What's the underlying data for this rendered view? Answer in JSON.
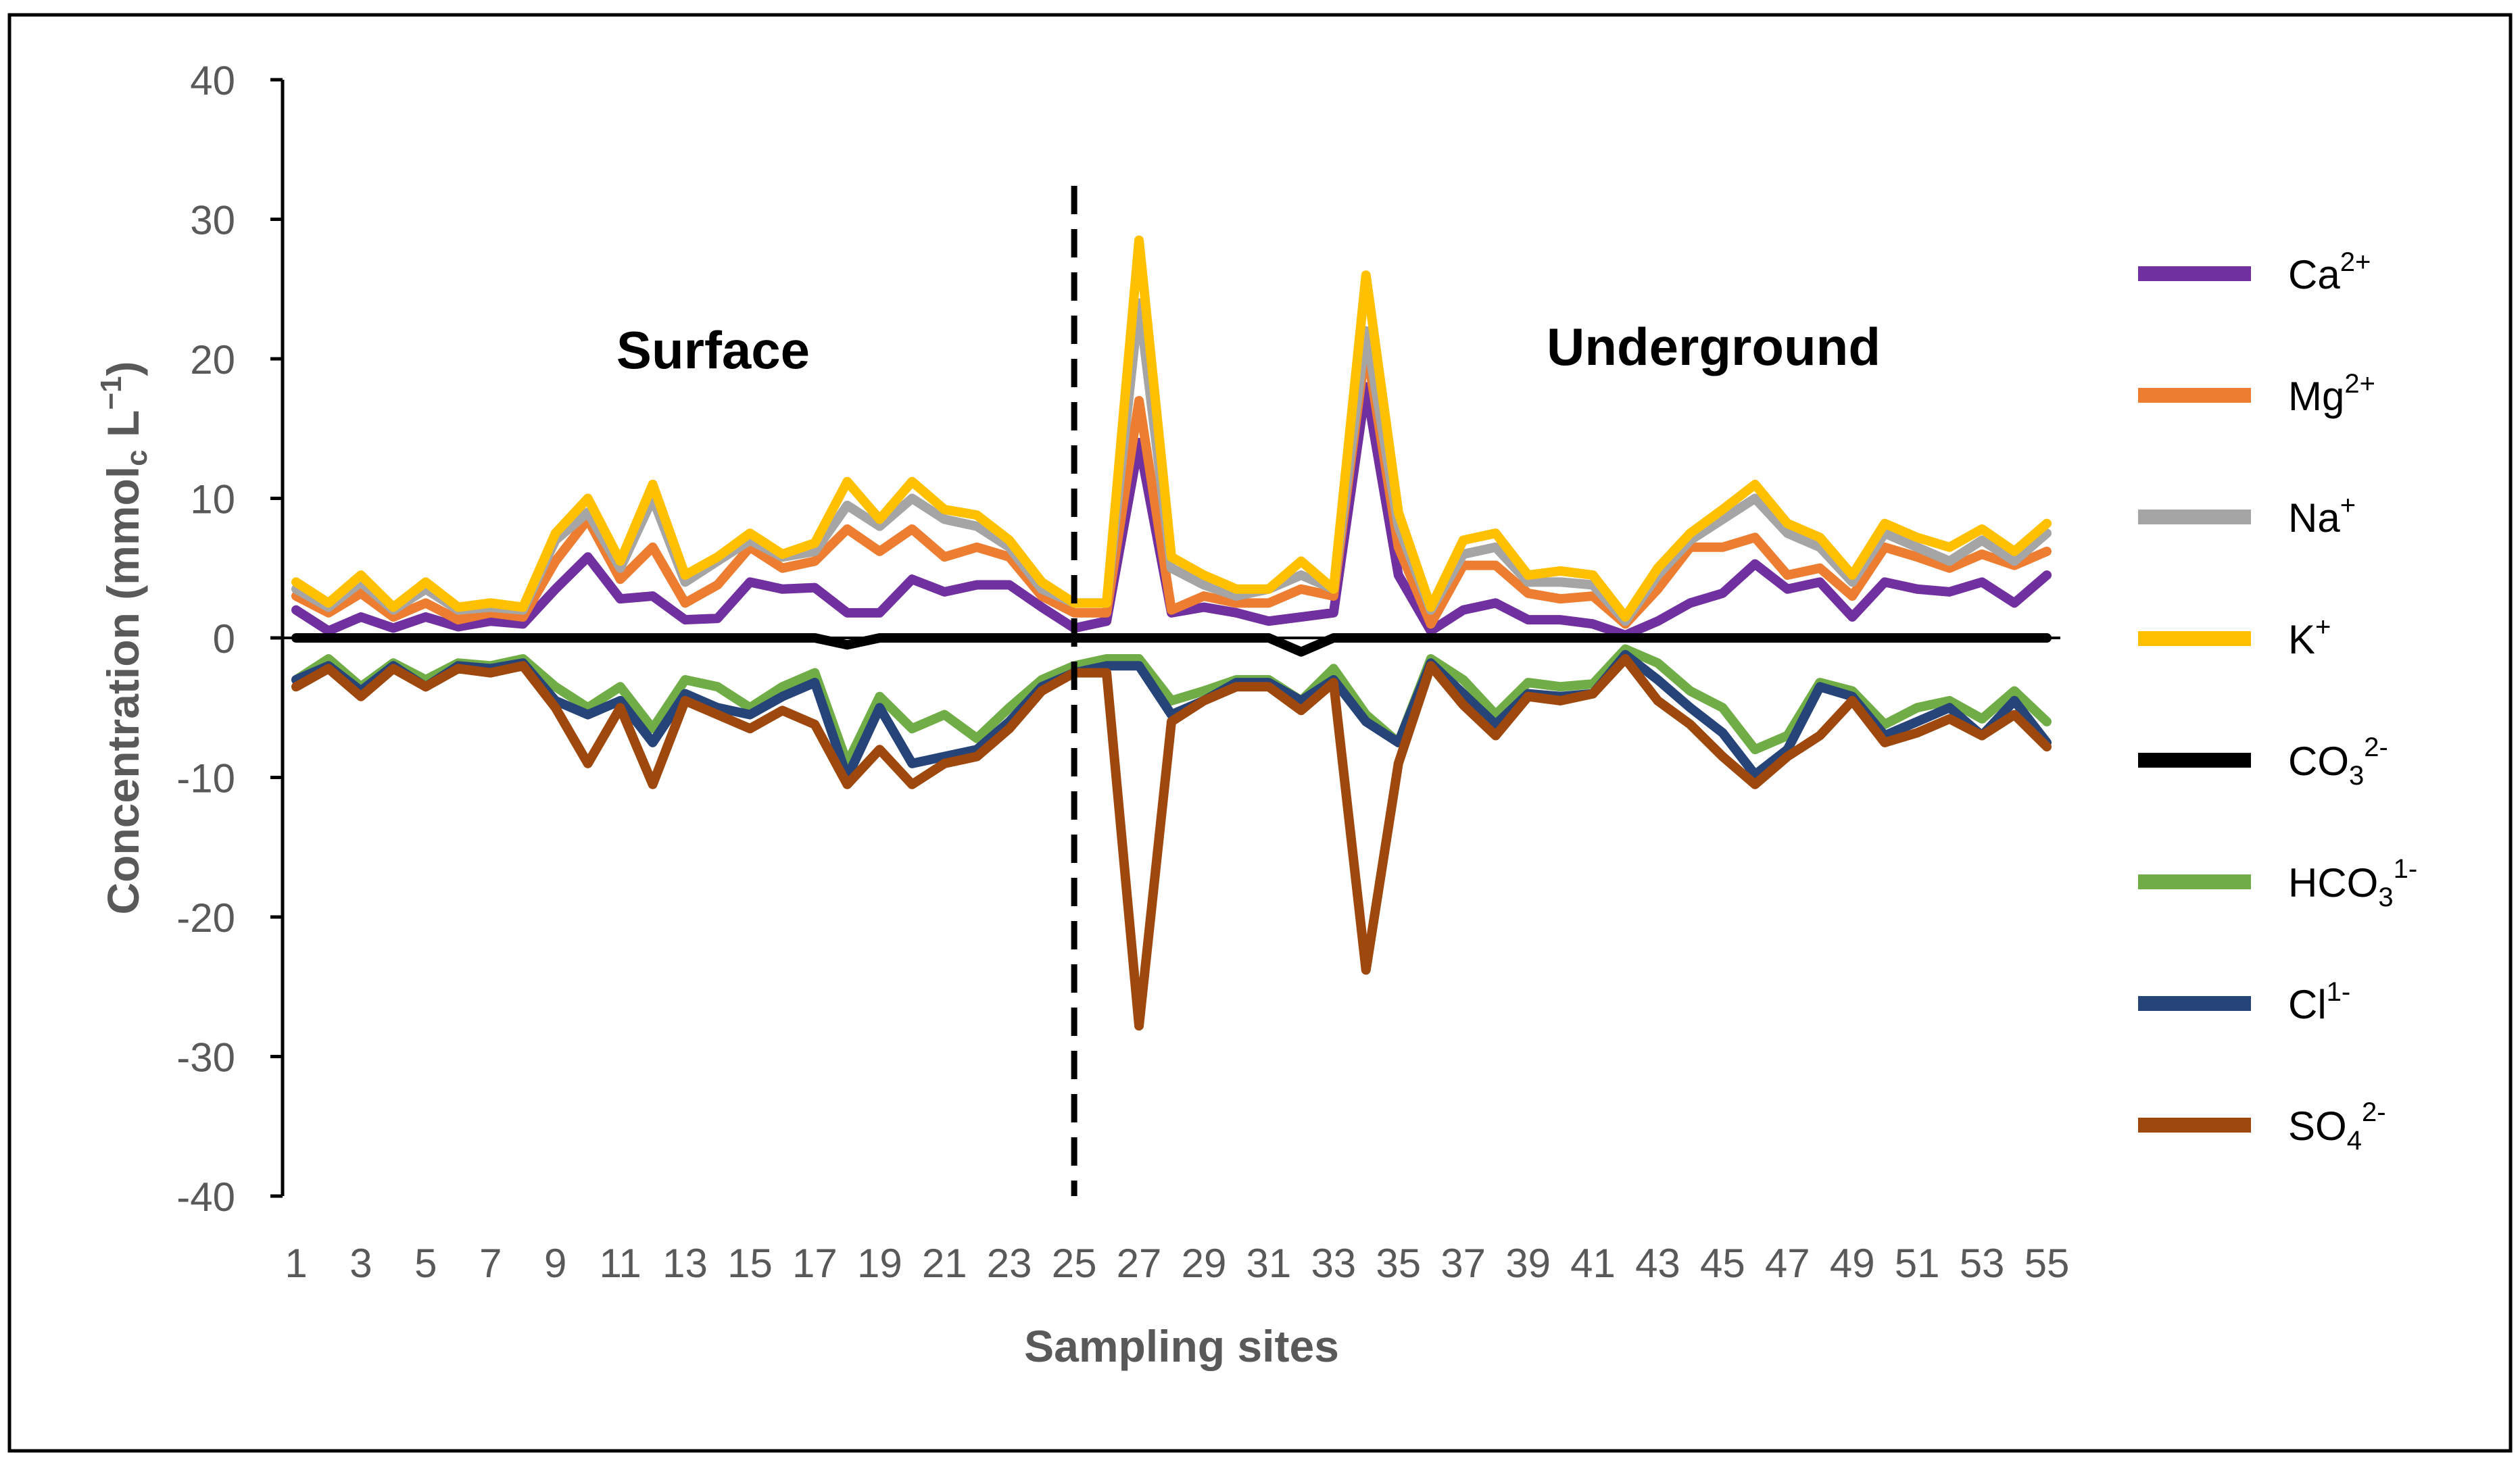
{
  "chart_data": {
    "type": "line",
    "title": "",
    "xlabel": "Sampling sites",
    "ylabel": {
      "pre": "Concentration (mmol",
      "sub": "c",
      "mid": " L",
      "sup": "−1",
      "post": ")"
    },
    "ylim": [
      -40,
      40
    ],
    "yticks": [
      40,
      30,
      20,
      10,
      0,
      -10,
      -20,
      -30,
      -40
    ],
    "xlim": [
      1,
      55
    ],
    "xticks": [
      1,
      3,
      5,
      7,
      9,
      11,
      13,
      15,
      17,
      19,
      21,
      23,
      25,
      27,
      29,
      31,
      33,
      35,
      37,
      39,
      41,
      43,
      45,
      47,
      49,
      51,
      53,
      55
    ],
    "divider_at": 25,
    "region_labels": {
      "left": "Surface",
      "right": "Underground"
    },
    "legend_position": "right",
    "x": [
      1,
      2,
      3,
      4,
      5,
      6,
      7,
      8,
      9,
      10,
      11,
      12,
      13,
      14,
      15,
      16,
      17,
      18,
      19,
      20,
      21,
      22,
      23,
      24,
      25,
      26,
      27,
      28,
      29,
      30,
      31,
      32,
      33,
      34,
      35,
      36,
      37,
      38,
      39,
      40,
      41,
      42,
      43,
      44,
      45,
      46,
      47,
      48,
      49,
      50,
      51,
      52,
      53,
      54,
      55
    ],
    "series": [
      {
        "name": "Ca2+",
        "label": {
          "base": "Ca",
          "sup": "2+",
          "sub": ""
        },
        "color": "#7030A0",
        "values": [
          2,
          0.5,
          1.5,
          0.7,
          1.5,
          0.8,
          1.2,
          1,
          3.5,
          5.8,
          2.8,
          3,
          1.3,
          1.4,
          4,
          3.5,
          3.6,
          1.8,
          1.8,
          4.2,
          3.3,
          3.8,
          3.8,
          2.2,
          0.7,
          1.2,
          14,
          1.8,
          2.2,
          1.8,
          1.2,
          1.5,
          1.8,
          18,
          4.5,
          0.5,
          2,
          2.5,
          1.3,
          1.3,
          1,
          0.2,
          1.2,
          2.5,
          3.2,
          5.3,
          3.5,
          4,
          1.5,
          4,
          3.5,
          3.3,
          4,
          2.5,
          4.5
        ]
      },
      {
        "name": "Mg2+",
        "label": {
          "base": "Mg",
          "sup": "2+",
          "sub": ""
        },
        "color": "#ED7D31",
        "values": [
          3,
          1.8,
          3.2,
          1.5,
          2.5,
          1.3,
          1.8,
          1.5,
          5.5,
          8.5,
          4.2,
          6.5,
          2.5,
          3.8,
          6.5,
          5,
          5.5,
          7.8,
          6.2,
          7.8,
          5.8,
          6.5,
          5.8,
          3,
          1.8,
          1.8,
          17,
          2,
          3,
          2.5,
          2.5,
          3.5,
          3,
          21,
          6.5,
          1,
          5.2,
          5.2,
          3.2,
          2.8,
          3,
          1,
          3.5,
          6.5,
          6.5,
          7.2,
          4.5,
          5,
          3,
          6.5,
          5.8,
          5,
          6,
          5.2,
          6.2
        ]
      },
      {
        "name": "Na+",
        "label": {
          "base": "Na",
          "sup": "+",
          "sub": ""
        },
        "color": "#A5A5A5",
        "values": [
          3.5,
          2.2,
          4,
          2,
          3.5,
          2,
          2.2,
          2,
          7,
          9,
          5,
          10,
          4,
          5.5,
          7,
          5.8,
          6.2,
          9.5,
          8,
          10,
          8.5,
          8,
          6.5,
          3.5,
          2.5,
          2.5,
          24,
          5,
          3.8,
          3,
          3.5,
          4.5,
          3.5,
          22,
          8,
          2,
          6,
          6.5,
          4,
          4,
          3.8,
          1.2,
          4.5,
          7,
          8.5,
          10,
          7.5,
          6.5,
          4,
          7.5,
          6.5,
          5.5,
          7,
          5.5,
          7.5
        ]
      },
      {
        "name": "K+",
        "label": {
          "base": "K",
          "sup": "+",
          "sub": ""
        },
        "color": "#FFC000",
        "values": [
          4,
          2.5,
          4.5,
          2.2,
          4,
          2.2,
          2.5,
          2.2,
          7.5,
          10,
          5.5,
          11,
          4.5,
          5.8,
          7.5,
          6,
          6.8,
          11.2,
          8.5,
          11.2,
          9.2,
          8.8,
          7,
          4,
          2.5,
          2.5,
          28.5,
          5.8,
          4.5,
          3.5,
          3.5,
          5.5,
          3.5,
          26,
          9,
          2.2,
          7,
          7.5,
          4.5,
          4.8,
          4.5,
          1.5,
          5,
          7.5,
          9.2,
          11,
          8.2,
          7.2,
          4.5,
          8.2,
          7.2,
          6.5,
          7.8,
          6.2,
          8.2
        ]
      },
      {
        "name": "CO32-",
        "label": {
          "base": "CO",
          "sup": "2-",
          "sub": "3"
        },
        "color": "#000000",
        "values": [
          0,
          0,
          0,
          0,
          0,
          0,
          0,
          0,
          0,
          0,
          0,
          0,
          0,
          0,
          0,
          0,
          0,
          -0.5,
          0,
          0,
          0,
          0,
          0,
          0,
          0,
          0,
          0,
          0,
          0,
          0,
          0,
          -1,
          0,
          0,
          0,
          0,
          0,
          0,
          0,
          0,
          0,
          0,
          0,
          0,
          0,
          0,
          0,
          0,
          0,
          0,
          0,
          0,
          0,
          0,
          0
        ]
      },
      {
        "name": "HCO31-",
        "label": {
          "base": "HCO",
          "sup": "1-",
          "sub": "3"
        },
        "color": "#70AD47",
        "values": [
          -3,
          -1.5,
          -3.5,
          -1.8,
          -3,
          -1.8,
          -2,
          -1.5,
          -3.5,
          -5,
          -3.5,
          -6.5,
          -3,
          -3.5,
          -5,
          -3.5,
          -2.5,
          -9,
          -4.2,
          -6.5,
          -5.5,
          -7.2,
          -5,
          -3,
          -2,
          -1.5,
          -1.5,
          -4.5,
          -3.8,
          -3,
          -3,
          -4.5,
          -2.2,
          -5.5,
          -7.5,
          -1.5,
          -3,
          -5.5,
          -3.2,
          -3.5,
          -3.3,
          -0.8,
          -1.8,
          -3.8,
          -5,
          -8,
          -7,
          -3.2,
          -3.8,
          -6.2,
          -5,
          -4.5,
          -5.8,
          -3.8,
          -6
        ]
      },
      {
        "name": "Cl1-",
        "label": {
          "base": "Cl",
          "sup": "1-",
          "sub": ""
        },
        "color": "#264478",
        "values": [
          -3,
          -2,
          -3.8,
          -2,
          -3.5,
          -2,
          -2.2,
          -1.8,
          -4.5,
          -5.5,
          -4.5,
          -7.5,
          -4,
          -5,
          -5.5,
          -4.2,
          -3.2,
          -10,
          -5,
          -9,
          -8.5,
          -8,
          -6,
          -3.5,
          -2.5,
          -2,
          -2,
          -5.5,
          -4.5,
          -3.2,
          -3.2,
          -4.5,
          -3,
          -6,
          -7.5,
          -1.8,
          -4,
          -6.2,
          -4,
          -4.2,
          -4,
          -1.2,
          -3,
          -5,
          -6.8,
          -9.8,
          -8,
          -3.5,
          -4.2,
          -7,
          -6,
          -5,
          -7,
          -4.5,
          -7.5
        ]
      },
      {
        "name": "SO42-",
        "label": {
          "base": "SO",
          "sup": "2-",
          "sub": "4"
        },
        "color": "#9E480E",
        "values": [
          -3.5,
          -2.2,
          -4.2,
          -2.2,
          -3.5,
          -2.2,
          -2.5,
          -2,
          -5,
          -9,
          -5,
          -10.5,
          -4.5,
          -5.5,
          -6.5,
          -5.2,
          -6.2,
          -10.5,
          -8,
          -10.5,
          -9,
          -8.5,
          -6.5,
          -3.8,
          -2.5,
          -2.5,
          -27.8,
          -6,
          -4.5,
          -3.5,
          -3.5,
          -5.2,
          -3.2,
          -23.8,
          -9,
          -2,
          -4.8,
          -7,
          -4.2,
          -4.5,
          -4,
          -1.5,
          -4.5,
          -6.2,
          -8.5,
          -10.5,
          -8.5,
          -7,
          -4.5,
          -7.5,
          -6.8,
          -5.8,
          -7,
          -5.5,
          -7.8
        ]
      }
    ]
  }
}
